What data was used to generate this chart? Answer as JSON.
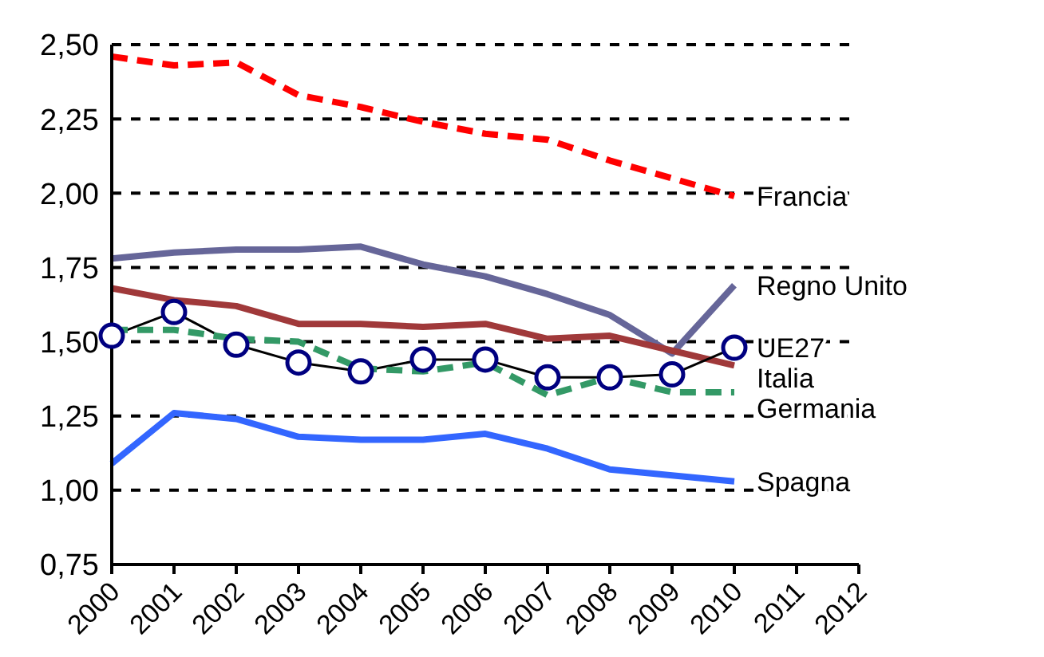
{
  "chart_data": {
    "type": "line",
    "categories": [
      "2000",
      "2001",
      "2002",
      "2003",
      "2004",
      "2005",
      "2006",
      "2007",
      "2008",
      "2009",
      "2010",
      "2011",
      "2012"
    ],
    "series": [
      {
        "name": "Francia",
        "color": "#ff0000",
        "line_style": "dashed",
        "values": [
          2.46,
          2.43,
          2.44,
          2.33,
          2.29,
          2.24,
          2.2,
          2.18,
          2.11,
          2.05,
          1.99,
          null,
          null
        ]
      },
      {
        "name": "Regno Unito",
        "color": "#666699",
        "line_style": "solid",
        "values": [
          1.78,
          1.8,
          1.81,
          1.81,
          1.82,
          1.76,
          1.72,
          1.66,
          1.59,
          1.46,
          1.69,
          null,
          null
        ]
      },
      {
        "name": "Italia",
        "color": "#a0393a",
        "line_style": "solid",
        "values": [
          1.68,
          1.64,
          1.62,
          1.56,
          1.56,
          1.55,
          1.56,
          1.51,
          1.52,
          1.47,
          1.42,
          null,
          null
        ]
      },
      {
        "name": "UE27",
        "color": "#000000",
        "line_style": "solid",
        "marker": "circle",
        "values": [
          1.52,
          1.6,
          1.49,
          1.43,
          1.4,
          1.44,
          1.44,
          1.38,
          1.38,
          1.39,
          1.48,
          null,
          null
        ]
      },
      {
        "name": "Germania",
        "color": "#339966",
        "line_style": "dashed",
        "values": [
          1.54,
          1.54,
          1.51,
          1.5,
          1.41,
          1.4,
          1.43,
          1.32,
          1.38,
          1.33,
          1.33,
          null,
          null
        ]
      },
      {
        "name": "Spagna",
        "color": "#3366ff",
        "line_style": "solid",
        "values": [
          1.09,
          1.26,
          1.24,
          1.18,
          1.17,
          1.17,
          1.19,
          1.14,
          1.07,
          1.05,
          1.03,
          null,
          null
        ]
      }
    ],
    "ylim": [
      0.75,
      2.5
    ],
    "yticks": [
      {
        "value": 0.75,
        "label": "0,75"
      },
      {
        "value": 1.0,
        "label": "1,00"
      },
      {
        "value": 1.25,
        "label": "1,25"
      },
      {
        "value": 1.5,
        "label": "1,50"
      },
      {
        "value": 1.75,
        "label": "1,75"
      },
      {
        "value": 2.0,
        "label": "2,00"
      },
      {
        "value": 2.25,
        "label": "2,25"
      },
      {
        "value": 2.5,
        "label": "2,50"
      }
    ],
    "grid": "y"
  }
}
